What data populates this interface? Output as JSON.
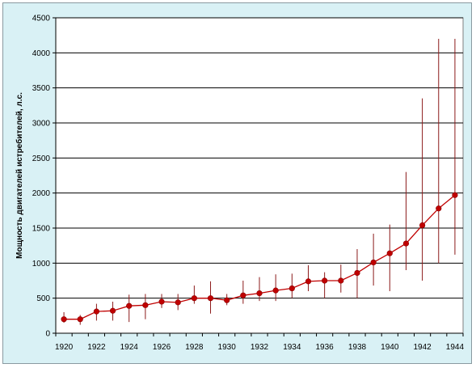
{
  "chart_data": {
    "type": "line",
    "title": "",
    "xlabel": "",
    "ylabel": "Мощность двигателей истребителей,  л.с.",
    "xlim": [
      1920,
      1944
    ],
    "ylim": [
      0,
      4500
    ],
    "x_ticks": [
      "1920",
      "1922",
      "1924",
      "1926",
      "1928",
      "1930",
      "1932",
      "1934",
      "1936",
      "1938",
      "1940",
      "1942",
      "1944"
    ],
    "y_ticks": [
      "0",
      "500",
      "1000",
      "1500",
      "2000",
      "2500",
      "3000",
      "3500",
      "4000",
      "4500"
    ],
    "grid": "horizontal",
    "legend": "none",
    "series": [
      {
        "color": "#c00000",
        "error_color": "#8b1a1a",
        "points": [
          {
            "x": 1920,
            "y": 200,
            "low": 150,
            "high": 300
          },
          {
            "x": 1921,
            "y": 200,
            "low": 120,
            "high": 260
          },
          {
            "x": 1922,
            "y": 310,
            "low": 180,
            "high": 420
          },
          {
            "x": 1923,
            "y": 320,
            "low": 180,
            "high": 450
          },
          {
            "x": 1924,
            "y": 390,
            "low": 160,
            "high": 550
          },
          {
            "x": 1925,
            "y": 400,
            "low": 200,
            "high": 560
          },
          {
            "x": 1926,
            "y": 450,
            "low": 360,
            "high": 560
          },
          {
            "x": 1927,
            "y": 440,
            "low": 330,
            "high": 560
          },
          {
            "x": 1928,
            "y": 500,
            "low": 420,
            "high": 680
          },
          {
            "x": 1929,
            "y": 500,
            "low": 280,
            "high": 740
          },
          {
            "x": 1930,
            "y": 470,
            "low": 400,
            "high": 560
          },
          {
            "x": 1931,
            "y": 540,
            "low": 420,
            "high": 750
          },
          {
            "x": 1932,
            "y": 570,
            "low": 460,
            "high": 800
          },
          {
            "x": 1933,
            "y": 610,
            "low": 460,
            "high": 840
          },
          {
            "x": 1934,
            "y": 640,
            "low": 500,
            "high": 850
          },
          {
            "x": 1935,
            "y": 740,
            "low": 600,
            "high": 970
          },
          {
            "x": 1936,
            "y": 750,
            "low": 500,
            "high": 870
          },
          {
            "x": 1937,
            "y": 750,
            "low": 580,
            "high": 980
          },
          {
            "x": 1938,
            "y": 860,
            "low": 500,
            "high": 1200
          },
          {
            "x": 1939,
            "y": 1010,
            "low": 680,
            "high": 1420
          },
          {
            "x": 1940,
            "y": 1140,
            "low": 600,
            "high": 1550
          },
          {
            "x": 1941,
            "y": 1280,
            "low": 900,
            "high": 2300
          },
          {
            "x": 1942,
            "y": 1540,
            "low": 750,
            "high": 3350
          },
          {
            "x": 1943,
            "y": 1780,
            "low": 1000,
            "high": 4200
          },
          {
            "x": 1944,
            "y": 1970,
            "low": 1120,
            "high": 4200
          }
        ]
      }
    ]
  }
}
